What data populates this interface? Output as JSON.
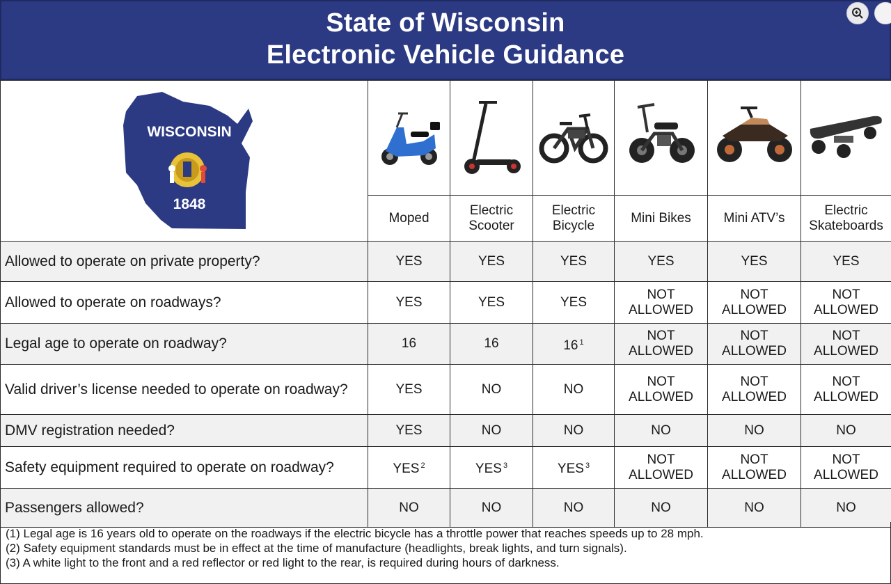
{
  "header": {
    "title_line1": "State of Wisconsin",
    "title_line2": "Electronic Vehicle Guidance"
  },
  "badge": {
    "state_name": "WISCONSIN",
    "year": "1848"
  },
  "vehicles": [
    {
      "label_line1": "Moped",
      "label_line2": "",
      "icon": "moped-icon"
    },
    {
      "label_line1": "Electric",
      "label_line2": "Scooter",
      "icon": "electric-scooter-icon"
    },
    {
      "label_line1": "Electric",
      "label_line2": "Bicycle",
      "icon": "electric-bicycle-icon"
    },
    {
      "label_line1": "Mini Bikes",
      "label_line2": "",
      "icon": "mini-bike-icon"
    },
    {
      "label_line1": "Mini ATV’s",
      "label_line2": "",
      "icon": "mini-atv-icon"
    },
    {
      "label_line1": "Electric",
      "label_line2": "Skateboards",
      "icon": "electric-skateboard-icon"
    }
  ],
  "rows": [
    {
      "question": "Allowed to operate on private property?",
      "cells": [
        {
          "l1": "YES",
          "l2": "",
          "sup": ""
        },
        {
          "l1": "YES",
          "l2": "",
          "sup": ""
        },
        {
          "l1": "YES",
          "l2": "",
          "sup": ""
        },
        {
          "l1": "YES",
          "l2": "",
          "sup": ""
        },
        {
          "l1": "YES",
          "l2": "",
          "sup": ""
        },
        {
          "l1": "YES",
          "l2": "",
          "sup": ""
        }
      ]
    },
    {
      "question": "Allowed to operate on roadways?",
      "cells": [
        {
          "l1": "YES",
          "l2": "",
          "sup": ""
        },
        {
          "l1": "YES",
          "l2": "",
          "sup": ""
        },
        {
          "l1": "YES",
          "l2": "",
          "sup": ""
        },
        {
          "l1": "NOT",
          "l2": "ALLOWED",
          "sup": ""
        },
        {
          "l1": "NOT",
          "l2": "ALLOWED",
          "sup": ""
        },
        {
          "l1": "NOT",
          "l2": "ALLOWED",
          "sup": ""
        }
      ]
    },
    {
      "question": "Legal age to operate on roadway?",
      "cells": [
        {
          "l1": "16",
          "l2": "",
          "sup": ""
        },
        {
          "l1": "16",
          "l2": "",
          "sup": ""
        },
        {
          "l1": "16",
          "l2": "",
          "sup": "1"
        },
        {
          "l1": "NOT",
          "l2": "ALLOWED",
          "sup": ""
        },
        {
          "l1": "NOT",
          "l2": "ALLOWED",
          "sup": ""
        },
        {
          "l1": "NOT",
          "l2": "ALLOWED",
          "sup": ""
        }
      ]
    },
    {
      "question": "Valid driver’s license needed to operate on roadway?",
      "cells": [
        {
          "l1": "YES",
          "l2": "",
          "sup": ""
        },
        {
          "l1": "NO",
          "l2": "",
          "sup": ""
        },
        {
          "l1": "NO",
          "l2": "",
          "sup": ""
        },
        {
          "l1": "NOT",
          "l2": "ALLOWED",
          "sup": ""
        },
        {
          "l1": "NOT",
          "l2": "ALLOWED",
          "sup": ""
        },
        {
          "l1": "NOT",
          "l2": "ALLOWED",
          "sup": ""
        }
      ]
    },
    {
      "question": "DMV registration needed?",
      "cells": [
        {
          "l1": "YES",
          "l2": "",
          "sup": ""
        },
        {
          "l1": "NO",
          "l2": "",
          "sup": ""
        },
        {
          "l1": "NO",
          "l2": "",
          "sup": ""
        },
        {
          "l1": "NO",
          "l2": "",
          "sup": ""
        },
        {
          "l1": "NO",
          "l2": "",
          "sup": ""
        },
        {
          "l1": "NO",
          "l2": "",
          "sup": ""
        }
      ]
    },
    {
      "question": "Safety equipment required to operate on roadway?",
      "cells": [
        {
          "l1": "YES",
          "l2": "",
          "sup": "2"
        },
        {
          "l1": "YES",
          "l2": "",
          "sup": "3"
        },
        {
          "l1": "YES",
          "l2": "",
          "sup": "3"
        },
        {
          "l1": "NOT",
          "l2": "ALLOWED",
          "sup": ""
        },
        {
          "l1": "NOT",
          "l2": "ALLOWED",
          "sup": ""
        },
        {
          "l1": "NOT",
          "l2": "ALLOWED",
          "sup": ""
        }
      ]
    },
    {
      "question": "Passengers allowed?",
      "cells": [
        {
          "l1": "NO",
          "l2": "",
          "sup": ""
        },
        {
          "l1": "NO",
          "l2": "",
          "sup": ""
        },
        {
          "l1": "NO",
          "l2": "",
          "sup": ""
        },
        {
          "l1": "NO",
          "l2": "",
          "sup": ""
        },
        {
          "l1": "NO",
          "l2": "",
          "sup": ""
        },
        {
          "l1": "NO",
          "l2": "",
          "sup": ""
        }
      ]
    }
  ],
  "notes": [
    "(1) Legal age is 16 years old to operate on the roadways if the electric bicycle has a throttle power that reaches speeds up to 28 mph.",
    "(2) Safety equipment standards must be in effect at the time of manufacture (headlights, break lights, and turn signals).",
    "(3) A white light to the front and a red reflector or red light to the rear, is required during hours of darkness."
  ],
  "colors": {
    "header_bg": "#2b3a83",
    "map_fill": "#2b3a83",
    "shade_row": "#f1f1f1"
  }
}
